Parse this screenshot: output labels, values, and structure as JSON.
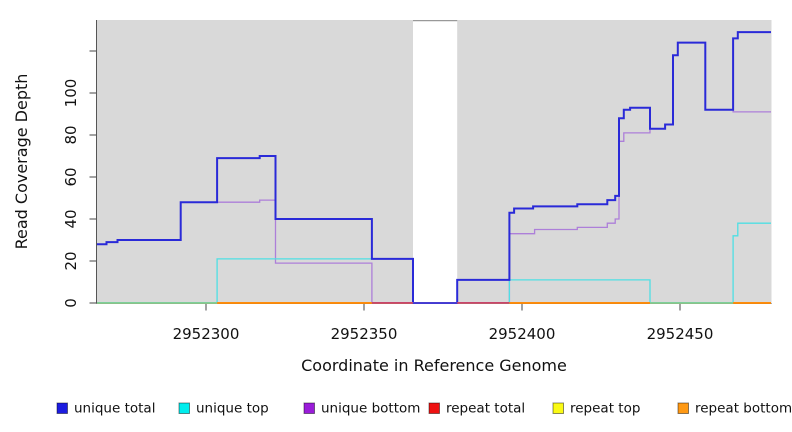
{
  "chart_data": {
    "type": "line",
    "variant": "step",
    "title": "",
    "xlabel": "Coordinate in Reference Genome",
    "ylabel": "Read Coverage Depth",
    "xlim": [
      2952265.5,
      2952478.8
    ],
    "ylim": [
      0,
      135
    ],
    "grid": "off",
    "panel_bg": "#d9d9d9",
    "axis_color": "#555555",
    "x_ticks": [
      2952300,
      2952350,
      2952400,
      2952450
    ],
    "y_ticks": [
      {
        "value": 0,
        "label": "0"
      },
      {
        "value": 20,
        "label": "20"
      },
      {
        "value": 40,
        "label": "40"
      },
      {
        "value": 60,
        "label": "60"
      },
      {
        "value": 80,
        "label": "80"
      },
      {
        "value": 100,
        "label": "100"
      },
      {
        "value": 120,
        "label": ""
      }
    ],
    "gap_region": {
      "x0": 2952365.5,
      "x1": 2952379.5,
      "fill": "#ffffff",
      "cap_color": "#999999"
    },
    "series": [
      {
        "name": "repeat total",
        "slug": "repeat-total",
        "color": "#e01717",
        "width": 1.2,
        "steps": [
          [
            2952265.5,
            0
          ]
        ]
      },
      {
        "name": "repeat top",
        "slug": "repeat-top",
        "color": "#f5f50a",
        "width": 1.2,
        "steps": [
          [
            2952265.5,
            0
          ]
        ]
      },
      {
        "name": "repeat bottom",
        "slug": "repeat-bottom",
        "color": "#ff8c0a",
        "width": 1.5,
        "steps": [
          [
            2952265.5,
            0
          ]
        ]
      },
      {
        "name": "unique bottom",
        "slug": "unique-bottom",
        "color": "#ad7fd9",
        "width": 1.3,
        "steps": [
          [
            2952265.5,
            28
          ],
          [
            2952268.5,
            29
          ],
          [
            2952272,
            30
          ],
          [
            2952292,
            48
          ],
          [
            2952317,
            49
          ],
          [
            2952322,
            19
          ],
          [
            2952352.5,
            0
          ],
          [
            2952396,
            33
          ],
          [
            2952404,
            35
          ],
          [
            2952417.5,
            36
          ],
          [
            2952427,
            38
          ],
          [
            2952429.5,
            40
          ],
          [
            2952430.7,
            77
          ],
          [
            2952432.2,
            81
          ],
          [
            2952440.5,
            83
          ],
          [
            2952445.3,
            85
          ],
          [
            2952447.8,
            118
          ],
          [
            2952449.3,
            124
          ],
          [
            2952458,
            92
          ],
          [
            2952466.8,
            91
          ]
        ]
      },
      {
        "name": "unique top",
        "slug": "unique-top",
        "color": "#4fdfe4",
        "width": 1.3,
        "steps": [
          [
            2952265.5,
            0
          ],
          [
            2952303.5,
            21
          ],
          [
            2952365.5,
            0
          ],
          [
            2952396,
            11
          ],
          [
            2952440.5,
            0
          ],
          [
            2952466.8,
            32
          ],
          [
            2952468.3,
            38
          ]
        ]
      },
      {
        "name": "unique total",
        "slug": "unique-total",
        "color": "#2a2ad8",
        "width": 2,
        "steps": [
          [
            2952265.5,
            28
          ],
          [
            2952268.5,
            29
          ],
          [
            2952272,
            30
          ],
          [
            2952292,
            48
          ],
          [
            2952303.5,
            69
          ],
          [
            2952317,
            70
          ],
          [
            2952322,
            40
          ],
          [
            2952352.5,
            21
          ],
          [
            2952365.5,
            0
          ],
          [
            2952379.5,
            11
          ],
          [
            2952396,
            43
          ],
          [
            2952397.5,
            45
          ],
          [
            2952403.5,
            46
          ],
          [
            2952417.5,
            47
          ],
          [
            2952427,
            49
          ],
          [
            2952429.5,
            51
          ],
          [
            2952430.7,
            88
          ],
          [
            2952432.2,
            92
          ],
          [
            2952434.2,
            93
          ],
          [
            2952440.5,
            83
          ],
          [
            2952445.3,
            85
          ],
          [
            2952447.8,
            118
          ],
          [
            2952449.3,
            124
          ],
          [
            2952458,
            92
          ],
          [
            2952466.8,
            126
          ],
          [
            2952468.3,
            129
          ]
        ]
      }
    ],
    "baseline_segments": [
      {
        "x0": 2952265.5,
        "x1": 2952303.5,
        "color": "#7ecf9a"
      },
      {
        "x0": 2952303.5,
        "x1": 2952352.5,
        "color": "#ff8c0a"
      },
      {
        "x0": 2952352.5,
        "x1": 2952365.5,
        "color": "#c8456b"
      },
      {
        "x0": 2952365.5,
        "x1": 2952379.5,
        "color": "#4a3fd0"
      },
      {
        "x0": 2952379.5,
        "x1": 2952396,
        "color": "#c8456b"
      },
      {
        "x0": 2952396,
        "x1": 2952440.5,
        "color": "#ff8c0a"
      },
      {
        "x0": 2952440.5,
        "x1": 2952466.8,
        "color": "#7ecf9a"
      },
      {
        "x0": 2952466.8,
        "x1": 2952478.8,
        "color": "#ff8c0a"
      }
    ],
    "legend": {
      "position": "bottom",
      "items": [
        {
          "label": "unique total",
          "slug": "unique-total",
          "color": "#1c1ce0"
        },
        {
          "label": "unique top",
          "slug": "unique-top",
          "color": "#00eded"
        },
        {
          "label": "unique bottom",
          "slug": "unique-bottom",
          "color": "#9a1cd9"
        },
        {
          "label": "repeat total",
          "slug": "repeat-total",
          "color": "#ee1111"
        },
        {
          "label": "repeat top",
          "slug": "repeat-top",
          "color": "#fafa14"
        },
        {
          "label": "repeat bottom",
          "slug": "repeat-bottom",
          "color": "#ff9914"
        }
      ]
    }
  }
}
